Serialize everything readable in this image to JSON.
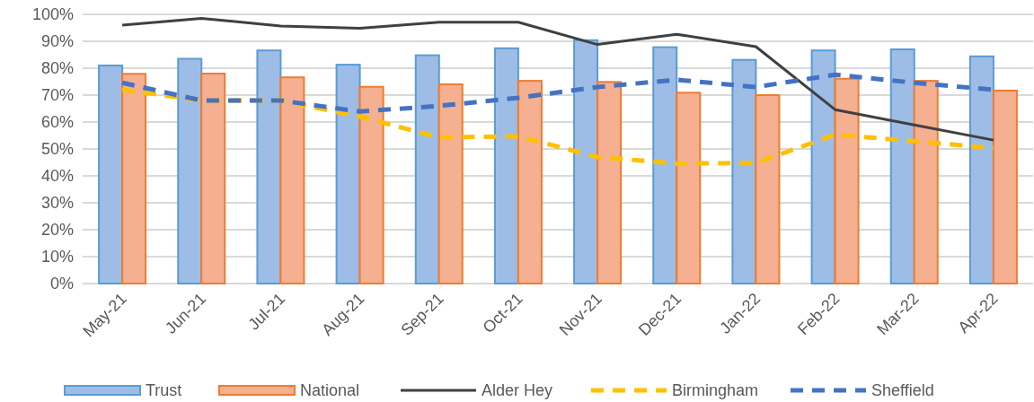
{
  "chart_data": {
    "type": "bar",
    "categories": [
      "May-21",
      "Jun-21",
      "Jul-21",
      "Aug-21",
      "Sep-21",
      "Oct-21",
      "Nov-21",
      "Dec-21",
      "Jan-22",
      "Feb-22",
      "Mar-22",
      "Apr-22"
    ],
    "series": [
      {
        "name": "Trust",
        "color": "#9dbde6",
        "values": [
          81,
          83.5,
          86.6,
          81.3,
          84.8,
          87.4,
          90.4,
          87.8,
          83.1,
          86.6,
          87,
          84.4
        ]
      },
      {
        "name": "National",
        "color": "#f4b090",
        "values": [
          77.9,
          78,
          76.6,
          73.1,
          74,
          75.3,
          74.9,
          70.9,
          70,
          76.1,
          75.3,
          71.7
        ]
      },
      {
        "name": "Alder Hey",
        "type": "line",
        "color": "#404040",
        "line_style": "solid",
        "values": [
          96,
          98.5,
          95.7,
          94.8,
          97.1,
          97.1,
          88.8,
          92.6,
          88,
          64.6,
          58.9,
          53.3
        ]
      },
      {
        "name": "Birmingham",
        "type": "line",
        "color": "#ffc000",
        "line_style": "dashed",
        "values": [
          72,
          68,
          68,
          62,
          54.3,
          54.7,
          47,
          44.6,
          44.8,
          55.3,
          52.9,
          50.3
        ]
      },
      {
        "name": "Sheffield",
        "type": "line",
        "color": "#4472c4",
        "line_style": "dashed",
        "values": [
          74.6,
          68,
          68,
          63.9,
          66,
          69,
          73,
          75.7,
          73,
          77.6,
          74.6,
          72
        ]
      }
    ],
    "ylim": [
      0,
      100
    ],
    "yticks": [
      {
        "value": 0,
        "label": "0%"
      },
      {
        "value": 10,
        "label": "10%"
      },
      {
        "value": 20,
        "label": "20%"
      },
      {
        "value": 30,
        "label": "30%"
      },
      {
        "value": 40,
        "label": "40%"
      },
      {
        "value": 50,
        "label": "50%"
      },
      {
        "value": 60,
        "label": "60%"
      },
      {
        "value": 70,
        "label": "70%"
      },
      {
        "value": 80,
        "label": "80%"
      },
      {
        "value": 90,
        "label": "90%"
      },
      {
        "value": 100,
        "label": "100%"
      }
    ],
    "grid": "y",
    "legend": "bottom",
    "marker": "none"
  }
}
